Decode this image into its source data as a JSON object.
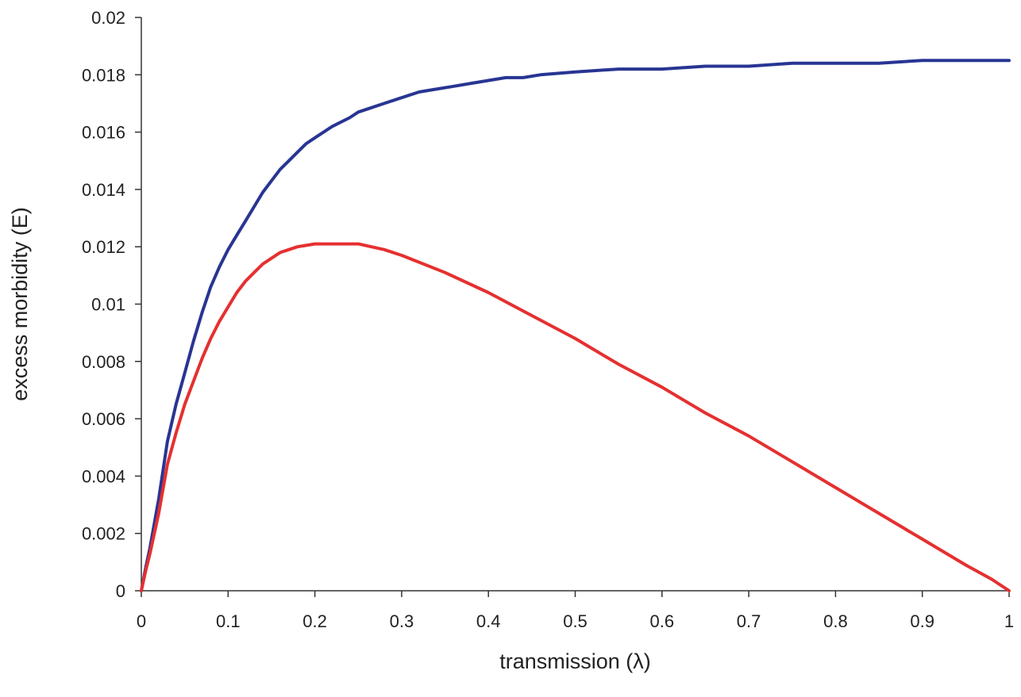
{
  "chart_data": {
    "type": "line",
    "title": "",
    "xlabel": "transmission (λ)",
    "ylabel": "excess morbidity (E)",
    "xlim": [
      0,
      1
    ],
    "ylim": [
      0,
      0.02
    ],
    "x_ticks": [
      "0",
      "0.1",
      "0.2",
      "0.3",
      "0.4",
      "0.5",
      "0.6",
      "0.7",
      "0.8",
      "0.9",
      "1"
    ],
    "y_ticks": [
      "0",
      "0.002",
      "0.004",
      "0.006",
      "0.008",
      "0.01",
      "0.012",
      "0.014",
      "0.016",
      "0.018",
      "0.02"
    ],
    "grid": false,
    "legend": "none",
    "series": [
      {
        "color": "#283593",
        "x": [
          0,
          0.005,
          0.01,
          0.02,
          0.03,
          0.04,
          0.05,
          0.06,
          0.07,
          0.08,
          0.09,
          0.1,
          0.11,
          0.12,
          0.13,
          0.14,
          0.15,
          0.16,
          0.17,
          0.18,
          0.19,
          0.2,
          0.22,
          0.24,
          0.25,
          0.26,
          0.28,
          0.3,
          0.32,
          0.34,
          0.36,
          0.38,
          0.4,
          0.42,
          0.44,
          0.46,
          0.5,
          0.55,
          0.6,
          0.65,
          0.7,
          0.75,
          0.8,
          0.85,
          0.9,
          0.95,
          1.0
        ],
        "y": [
          0,
          0.0008,
          0.0015,
          0.0032,
          0.0052,
          0.0065,
          0.0076,
          0.0087,
          0.0097,
          0.0106,
          0.0113,
          0.0119,
          0.0124,
          0.0129,
          0.0134,
          0.0139,
          0.0143,
          0.0147,
          0.015,
          0.0153,
          0.0156,
          0.0158,
          0.0162,
          0.0165,
          0.0167,
          0.0168,
          0.017,
          0.0172,
          0.0174,
          0.0175,
          0.0176,
          0.0177,
          0.0178,
          0.0179,
          0.0179,
          0.018,
          0.0181,
          0.0182,
          0.0182,
          0.0183,
          0.0183,
          0.0184,
          0.0184,
          0.0184,
          0.0185,
          0.0185,
          0.0185
        ]
      },
      {
        "color": "#e53030",
        "x": [
          0,
          0.005,
          0.01,
          0.02,
          0.03,
          0.04,
          0.05,
          0.06,
          0.07,
          0.08,
          0.09,
          0.1,
          0.11,
          0.12,
          0.13,
          0.14,
          0.15,
          0.16,
          0.17,
          0.18,
          0.2,
          0.22,
          0.25,
          0.28,
          0.3,
          0.35,
          0.4,
          0.45,
          0.5,
          0.55,
          0.6,
          0.65,
          0.7,
          0.75,
          0.8,
          0.85,
          0.9,
          0.95,
          0.98,
          1.0
        ],
        "y": [
          0,
          0.0007,
          0.0013,
          0.0027,
          0.0044,
          0.0055,
          0.0065,
          0.0073,
          0.0081,
          0.0088,
          0.0094,
          0.0099,
          0.0104,
          0.0108,
          0.0111,
          0.0114,
          0.0116,
          0.0118,
          0.0119,
          0.012,
          0.0121,
          0.0121,
          0.0121,
          0.0119,
          0.0117,
          0.0111,
          0.0104,
          0.0096,
          0.0088,
          0.0079,
          0.0071,
          0.0062,
          0.0054,
          0.0045,
          0.0036,
          0.0027,
          0.0018,
          0.0009,
          0.0004,
          0
        ]
      }
    ]
  }
}
